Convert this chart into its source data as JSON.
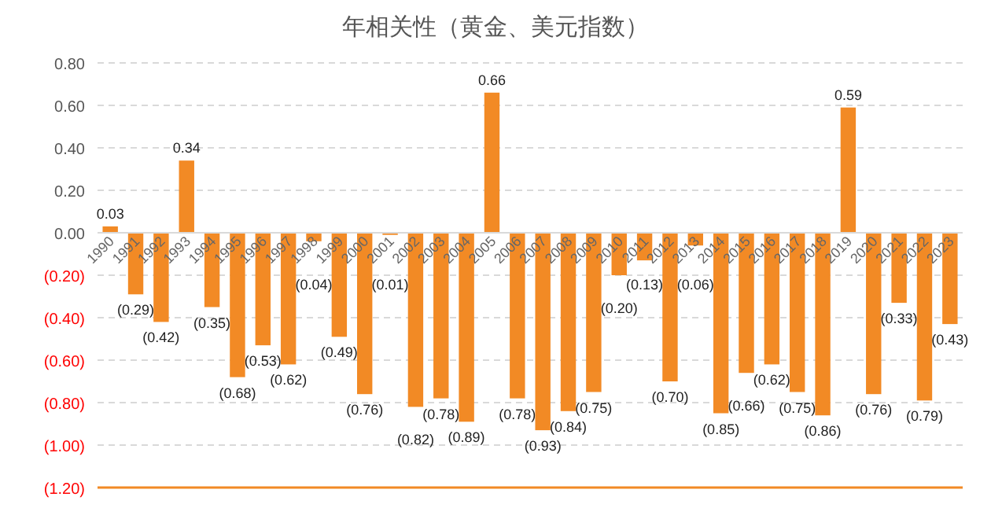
{
  "chart_data": {
    "type": "bar",
    "title": "年相关性（黄金、美元指数）",
    "categories": [
      "1990",
      "1991",
      "1992",
      "1993",
      "1994",
      "1995",
      "1996",
      "1997",
      "1998",
      "1999",
      "2000",
      "2001",
      "2002",
      "2003",
      "2004",
      "2005",
      "2006",
      "2007",
      "2008",
      "2009",
      "2010",
      "2011",
      "2012",
      "2013",
      "2014",
      "2015",
      "2016",
      "2017",
      "2018",
      "2019",
      "2020",
      "2021",
      "2022",
      "2023"
    ],
    "values": [
      0.03,
      -0.29,
      -0.42,
      0.34,
      -0.35,
      -0.68,
      -0.53,
      -0.62,
      -0.04,
      -0.49,
      -0.76,
      -0.01,
      -0.82,
      -0.78,
      -0.89,
      0.66,
      -0.78,
      -0.93,
      -0.84,
      -0.75,
      -0.2,
      -0.13,
      -0.7,
      -0.06,
      -0.85,
      -0.66,
      -0.62,
      -0.75,
      -0.86,
      0.59,
      -0.76,
      -0.33,
      -0.79,
      -0.43
    ],
    "value_labels": [
      "0.03",
      "(0.29)",
      "(0.42)",
      "0.34",
      "(0.35)",
      "(0.68)",
      "(0.53)",
      "(0.62)",
      "(0.04)",
      "(0.49)",
      "(0.76)",
      "(0.01)",
      "(0.82)",
      "(0.78)",
      "(0.89)",
      "0.66",
      "(0.78)",
      "(0.93)",
      "(0.84)",
      "(0.75)",
      "(0.20)",
      "(0.13)",
      "(0.70)",
      "(0.06)",
      "(0.85)",
      "(0.66)",
      "(0.62)",
      "(0.75)",
      "(0.86)",
      "0.59",
      "(0.76)",
      "(0.33)",
      "(0.79)",
      "(0.43)"
    ],
    "color": "#f28a25",
    "ylim": [
      -1.2,
      0.8
    ],
    "yticks": [
      {
        "value": 0.8,
        "label": "0.80"
      },
      {
        "value": 0.6,
        "label": "0.60"
      },
      {
        "value": 0.4,
        "label": "0.40"
      },
      {
        "value": 0.2,
        "label": "0.20"
      },
      {
        "value": 0,
        "label": "0.00"
      },
      {
        "value": -0.2,
        "label": "(0.20)"
      },
      {
        "value": -0.4,
        "label": "(0.40)"
      },
      {
        "value": -0.6,
        "label": "(0.60)"
      },
      {
        "value": -0.8,
        "label": "(0.80)"
      },
      {
        "value": -1.0,
        "label": "(1.00)"
      },
      {
        "value": -1.2,
        "label": "(1.20)"
      }
    ],
    "grid": "y"
  }
}
